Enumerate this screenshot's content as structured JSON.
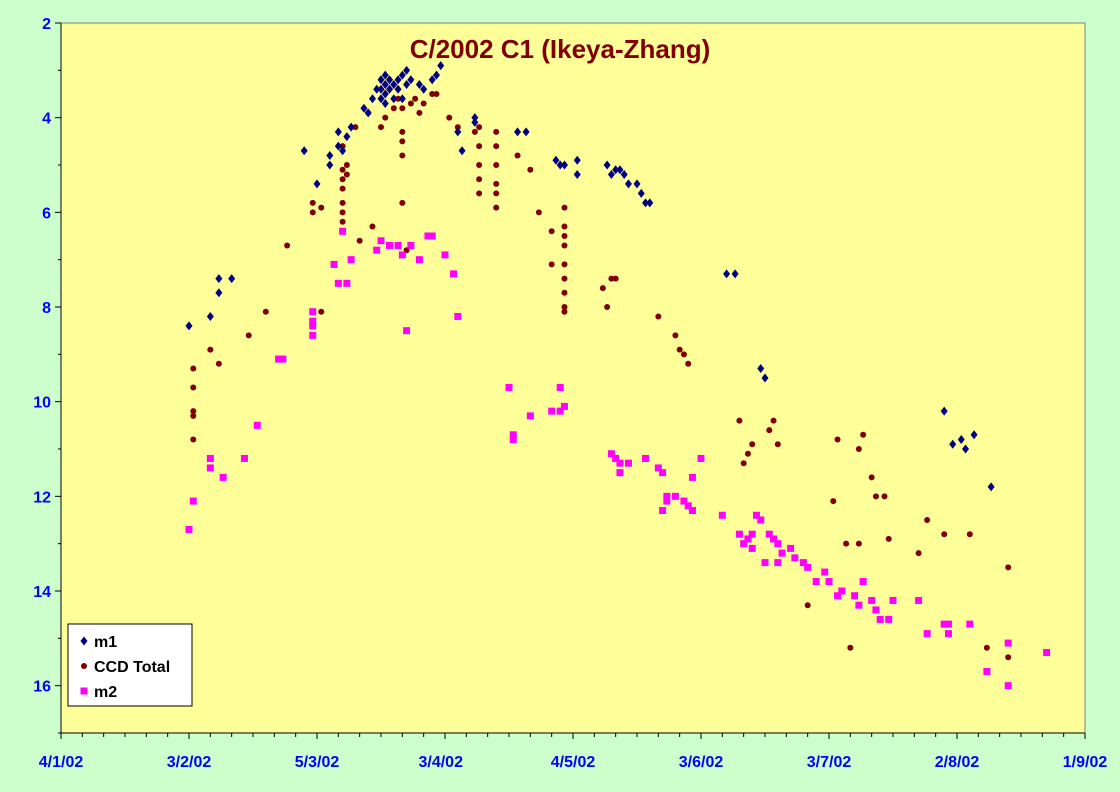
{
  "chart_data": {
    "type": "scatter",
    "title": "C/2002 C1 (Ikeya-Zhang)",
    "xlabel": "",
    "ylabel": "",
    "x_axis_kind": "date",
    "xlim": [
      "2002-01-04",
      "2002-09-01"
    ],
    "x_tick_labels": [
      "4/1/02",
      "3/2/02",
      "5/3/02",
      "3/4/02",
      "4/5/02",
      "3/6/02",
      "3/7/02",
      "2/8/02",
      "1/9/02"
    ],
    "x_tick_dates": [
      "2002-01-04",
      "2002-02-03",
      "2002-03-05",
      "2002-04-03",
      "2002-05-04",
      "2002-06-03",
      "2002-07-03",
      "2002-08-02",
      "2002-09-01"
    ],
    "ylim": [
      2,
      17
    ],
    "y_inverted": true,
    "y_ticks": [
      2,
      4,
      6,
      8,
      10,
      12,
      14,
      16
    ],
    "grid": false,
    "legend_position": "bottom-left",
    "series": [
      {
        "name": "m1",
        "marker": "diamond",
        "color": "#000080",
        "points": [
          [
            "2002-02-03",
            8.4
          ],
          [
            "2002-02-08",
            8.2
          ],
          [
            "2002-02-10",
            7.4
          ],
          [
            "2002-02-10",
            7.7
          ],
          [
            "2002-02-13",
            7.4
          ],
          [
            "2002-03-02",
            4.7
          ],
          [
            "2002-03-05",
            5.4
          ],
          [
            "2002-03-08",
            4.8
          ],
          [
            "2002-03-08",
            5.0
          ],
          [
            "2002-03-10",
            4.3
          ],
          [
            "2002-03-10",
            4.6
          ],
          [
            "2002-03-11",
            4.7
          ],
          [
            "2002-03-12",
            4.4
          ],
          [
            "2002-03-13",
            4.2
          ],
          [
            "2002-03-16",
            3.8
          ],
          [
            "2002-03-17",
            3.9
          ],
          [
            "2002-03-18",
            3.6
          ],
          [
            "2002-03-19",
            3.4
          ],
          [
            "2002-03-20",
            3.2
          ],
          [
            "2002-03-20",
            3.4
          ],
          [
            "2002-03-20",
            3.6
          ],
          [
            "2002-03-21",
            3.1
          ],
          [
            "2002-03-21",
            3.3
          ],
          [
            "2002-03-21",
            3.5
          ],
          [
            "2002-03-21",
            3.7
          ],
          [
            "2002-03-22",
            3.2
          ],
          [
            "2002-03-22",
            3.4
          ],
          [
            "2002-03-23",
            3.3
          ],
          [
            "2002-03-23",
            3.6
          ],
          [
            "2002-03-24",
            3.2
          ],
          [
            "2002-03-24",
            3.4
          ],
          [
            "2002-03-25",
            3.1
          ],
          [
            "2002-03-25",
            3.6
          ],
          [
            "2002-03-26",
            3.0
          ],
          [
            "2002-03-26",
            3.3
          ],
          [
            "2002-03-27",
            3.2
          ],
          [
            "2002-03-29",
            3.3
          ],
          [
            "2002-03-30",
            3.4
          ],
          [
            "2002-04-01",
            3.2
          ],
          [
            "2002-04-02",
            3.1
          ],
          [
            "2002-04-03",
            2.9
          ],
          [
            "2002-04-07",
            4.3
          ],
          [
            "2002-04-08",
            4.7
          ],
          [
            "2002-04-11",
            4.0
          ],
          [
            "2002-04-11",
            4.1
          ],
          [
            "2002-04-21",
            4.3
          ],
          [
            "2002-04-23",
            4.3
          ],
          [
            "2002-04-30",
            4.9
          ],
          [
            "2002-05-01",
            5.0
          ],
          [
            "2002-05-02",
            5.0
          ],
          [
            "2002-05-05",
            4.9
          ],
          [
            "2002-05-05",
            5.2
          ],
          [
            "2002-05-12",
            5.0
          ],
          [
            "2002-05-13",
            5.2
          ],
          [
            "2002-05-14",
            5.1
          ],
          [
            "2002-05-15",
            5.1
          ],
          [
            "2002-05-16",
            5.2
          ],
          [
            "2002-05-17",
            5.4
          ],
          [
            "2002-05-19",
            5.4
          ],
          [
            "2002-05-20",
            5.6
          ],
          [
            "2002-05-21",
            5.8
          ],
          [
            "2002-05-22",
            5.8
          ],
          [
            "2002-06-09",
            7.3
          ],
          [
            "2002-06-11",
            7.3
          ],
          [
            "2002-06-17",
            9.3
          ],
          [
            "2002-06-18",
            9.5
          ],
          [
            "2002-07-30",
            10.2
          ],
          [
            "2002-08-01",
            10.9
          ],
          [
            "2002-08-03",
            10.8
          ],
          [
            "2002-08-04",
            11.0
          ],
          [
            "2002-08-06",
            10.7
          ],
          [
            "2002-08-10",
            11.8
          ]
        ]
      },
      {
        "name": "CCD Total",
        "marker": "circle",
        "color": "#800000",
        "points": [
          [
            "2002-02-04",
            9.3
          ],
          [
            "2002-02-04",
            9.7
          ],
          [
            "2002-02-04",
            10.2
          ],
          [
            "2002-02-04",
            10.3
          ],
          [
            "2002-02-04",
            10.8
          ],
          [
            "2002-02-08",
            8.9
          ],
          [
            "2002-02-10",
            9.2
          ],
          [
            "2002-02-17",
            8.6
          ],
          [
            "2002-02-21",
            8.1
          ],
          [
            "2002-02-26",
            6.7
          ],
          [
            "2002-03-04",
            5.8
          ],
          [
            "2002-03-04",
            6.0
          ],
          [
            "2002-03-06",
            5.9
          ],
          [
            "2002-03-06",
            8.1
          ],
          [
            "2002-03-11",
            4.6
          ],
          [
            "2002-03-11",
            5.1
          ],
          [
            "2002-03-11",
            5.3
          ],
          [
            "2002-03-11",
            5.5
          ],
          [
            "2002-03-11",
            5.8
          ],
          [
            "2002-03-11",
            6.0
          ],
          [
            "2002-03-11",
            6.2
          ],
          [
            "2002-03-12",
            5.0
          ],
          [
            "2002-03-12",
            5.2
          ],
          [
            "2002-03-14",
            4.2
          ],
          [
            "2002-03-15",
            6.6
          ],
          [
            "2002-03-17",
            3.9
          ],
          [
            "2002-03-18",
            6.3
          ],
          [
            "2002-03-20",
            4.2
          ],
          [
            "2002-03-21",
            4.0
          ],
          [
            "2002-03-23",
            3.8
          ],
          [
            "2002-03-24",
            3.6
          ],
          [
            "2002-03-25",
            3.8
          ],
          [
            "2002-03-25",
            4.3
          ],
          [
            "2002-03-25",
            4.5
          ],
          [
            "2002-03-25",
            4.8
          ],
          [
            "2002-03-25",
            5.8
          ],
          [
            "2002-03-26",
            6.8
          ],
          [
            "2002-03-27",
            3.7
          ],
          [
            "2002-03-28",
            3.6
          ],
          [
            "2002-03-29",
            3.9
          ],
          [
            "2002-03-30",
            3.7
          ],
          [
            "2002-04-01",
            3.5
          ],
          [
            "2002-04-02",
            3.5
          ],
          [
            "2002-04-05",
            4.0
          ],
          [
            "2002-04-07",
            4.2
          ],
          [
            "2002-04-11",
            4.3
          ],
          [
            "2002-04-12",
            4.2
          ],
          [
            "2002-04-12",
            4.6
          ],
          [
            "2002-04-12",
            5.0
          ],
          [
            "2002-04-12",
            5.3
          ],
          [
            "2002-04-12",
            5.6
          ],
          [
            "2002-04-16",
            4.3
          ],
          [
            "2002-04-16",
            4.6
          ],
          [
            "2002-04-16",
            5.0
          ],
          [
            "2002-04-16",
            5.4
          ],
          [
            "2002-04-16",
            5.6
          ],
          [
            "2002-04-16",
            5.9
          ],
          [
            "2002-04-21",
            4.8
          ],
          [
            "2002-04-24",
            5.1
          ],
          [
            "2002-04-26",
            6.0
          ],
          [
            "2002-04-29",
            6.4
          ],
          [
            "2002-04-29",
            7.1
          ],
          [
            "2002-05-02",
            5.9
          ],
          [
            "2002-05-02",
            6.3
          ],
          [
            "2002-05-02",
            6.5
          ],
          [
            "2002-05-02",
            6.7
          ],
          [
            "2002-05-02",
            7.1
          ],
          [
            "2002-05-02",
            7.4
          ],
          [
            "2002-05-02",
            7.7
          ],
          [
            "2002-05-02",
            8.0
          ],
          [
            "2002-05-02",
            8.1
          ],
          [
            "2002-05-11",
            7.6
          ],
          [
            "2002-05-12",
            8.0
          ],
          [
            "2002-05-13",
            7.4
          ],
          [
            "2002-05-14",
            7.4
          ],
          [
            "2002-05-24",
            8.2
          ],
          [
            "2002-05-28",
            8.6
          ],
          [
            "2002-05-29",
            8.9
          ],
          [
            "2002-05-30",
            9.0
          ],
          [
            "2002-05-31",
            9.2
          ],
          [
            "2002-06-12",
            10.4
          ],
          [
            "2002-06-13",
            11.3
          ],
          [
            "2002-06-14",
            11.1
          ],
          [
            "2002-06-15",
            10.9
          ],
          [
            "2002-06-19",
            10.6
          ],
          [
            "2002-06-20",
            10.4
          ],
          [
            "2002-06-21",
            10.9
          ],
          [
            "2002-06-28",
            14.3
          ],
          [
            "2002-07-04",
            12.1
          ],
          [
            "2002-07-05",
            10.8
          ],
          [
            "2002-07-07",
            13.0
          ],
          [
            "2002-07-08",
            15.2
          ],
          [
            "2002-07-10",
            11.0
          ],
          [
            "2002-07-10",
            13.0
          ],
          [
            "2002-07-11",
            10.7
          ],
          [
            "2002-07-13",
            11.6
          ],
          [
            "2002-07-14",
            12.0
          ],
          [
            "2002-07-16",
            12.0
          ],
          [
            "2002-07-17",
            12.9
          ],
          [
            "2002-07-24",
            13.2
          ],
          [
            "2002-07-26",
            12.5
          ],
          [
            "2002-07-30",
            12.8
          ],
          [
            "2002-08-05",
            12.8
          ],
          [
            "2002-08-09",
            15.2
          ],
          [
            "2002-08-14",
            13.5
          ],
          [
            "2002-08-14",
            15.4
          ]
        ]
      },
      {
        "name": "m2",
        "marker": "square",
        "color": "#ff00ff",
        "points": [
          [
            "2002-02-03",
            12.7
          ],
          [
            "2002-02-04",
            12.1
          ],
          [
            "2002-02-08",
            11.2
          ],
          [
            "2002-02-08",
            11.4
          ],
          [
            "2002-02-11",
            11.6
          ],
          [
            "2002-02-16",
            11.2
          ],
          [
            "2002-02-19",
            10.5
          ],
          [
            "2002-02-24",
            9.1
          ],
          [
            "2002-02-25",
            9.1
          ],
          [
            "2002-03-04",
            8.1
          ],
          [
            "2002-03-04",
            8.3
          ],
          [
            "2002-03-04",
            8.4
          ],
          [
            "2002-03-04",
            8.6
          ],
          [
            "2002-03-09",
            7.1
          ],
          [
            "2002-03-10",
            7.5
          ],
          [
            "2002-03-11",
            6.4
          ],
          [
            "2002-03-12",
            7.5
          ],
          [
            "2002-03-13",
            7.0
          ],
          [
            "2002-03-19",
            6.8
          ],
          [
            "2002-03-20",
            6.6
          ],
          [
            "2002-03-22",
            6.7
          ],
          [
            "2002-03-24",
            6.7
          ],
          [
            "2002-03-25",
            6.9
          ],
          [
            "2002-03-26",
            8.5
          ],
          [
            "2002-03-27",
            6.7
          ],
          [
            "2002-03-29",
            7.0
          ],
          [
            "2002-03-31",
            6.5
          ],
          [
            "2002-04-01",
            6.5
          ],
          [
            "2002-04-04",
            6.9
          ],
          [
            "2002-04-06",
            7.3
          ],
          [
            "2002-04-07",
            8.2
          ],
          [
            "2002-04-19",
            9.7
          ],
          [
            "2002-04-20",
            10.7
          ],
          [
            "2002-04-20",
            10.8
          ],
          [
            "2002-04-24",
            10.3
          ],
          [
            "2002-04-29",
            10.2
          ],
          [
            "2002-05-01",
            10.2
          ],
          [
            "2002-05-01",
            9.7
          ],
          [
            "2002-05-02",
            10.1
          ],
          [
            "2002-05-13",
            11.1
          ],
          [
            "2002-05-14",
            11.2
          ],
          [
            "2002-05-15",
            11.3
          ],
          [
            "2002-05-15",
            11.5
          ],
          [
            "2002-05-17",
            11.3
          ],
          [
            "2002-05-21",
            11.2
          ],
          [
            "2002-05-24",
            11.4
          ],
          [
            "2002-05-25",
            11.5
          ],
          [
            "2002-05-26",
            12.0
          ],
          [
            "2002-05-26",
            12.1
          ],
          [
            "2002-05-25",
            12.3
          ],
          [
            "2002-05-28",
            12.0
          ],
          [
            "2002-05-30",
            12.1
          ],
          [
            "2002-05-31",
            12.2
          ],
          [
            "2002-06-01",
            12.3
          ],
          [
            "2002-06-01",
            11.6
          ],
          [
            "2002-06-03",
            11.2
          ],
          [
            "2002-06-08",
            12.4
          ],
          [
            "2002-06-12",
            12.8
          ],
          [
            "2002-06-13",
            13.0
          ],
          [
            "2002-06-14",
            12.9
          ],
          [
            "2002-06-15",
            12.8
          ],
          [
            "2002-06-15",
            13.1
          ],
          [
            "2002-06-16",
            12.4
          ],
          [
            "2002-06-17",
            12.5
          ],
          [
            "2002-06-18",
            13.4
          ],
          [
            "2002-06-19",
            12.8
          ],
          [
            "2002-06-20",
            12.9
          ],
          [
            "2002-06-21",
            13.0
          ],
          [
            "2002-06-21",
            13.4
          ],
          [
            "2002-06-22",
            13.2
          ],
          [
            "2002-06-24",
            13.1
          ],
          [
            "2002-06-25",
            13.3
          ],
          [
            "2002-06-27",
            13.4
          ],
          [
            "2002-06-28",
            13.5
          ],
          [
            "2002-06-30",
            13.8
          ],
          [
            "2002-07-02",
            13.6
          ],
          [
            "2002-07-03",
            13.8
          ],
          [
            "2002-07-05",
            14.1
          ],
          [
            "2002-07-06",
            14.0
          ],
          [
            "2002-07-09",
            14.1
          ],
          [
            "2002-07-10",
            14.3
          ],
          [
            "2002-07-11",
            13.8
          ],
          [
            "2002-07-13",
            14.2
          ],
          [
            "2002-07-14",
            14.4
          ],
          [
            "2002-07-15",
            14.6
          ],
          [
            "2002-07-17",
            14.6
          ],
          [
            "2002-07-18",
            14.2
          ],
          [
            "2002-07-24",
            14.2
          ],
          [
            "2002-07-26",
            14.9
          ],
          [
            "2002-07-30",
            14.7
          ],
          [
            "2002-07-31",
            14.7
          ],
          [
            "2002-07-31",
            14.9
          ],
          [
            "2002-08-05",
            14.7
          ],
          [
            "2002-08-09",
            15.7
          ],
          [
            "2002-08-14",
            15.1
          ],
          [
            "2002-08-14",
            16.0
          ],
          [
            "2002-08-23",
            15.3
          ]
        ]
      }
    ]
  },
  "colors": {
    "page_background": "#ccffcc",
    "plot_background": "#ffff99",
    "axis": "#000000",
    "tick_labels": "#0000ff",
    "title": "#800000"
  }
}
